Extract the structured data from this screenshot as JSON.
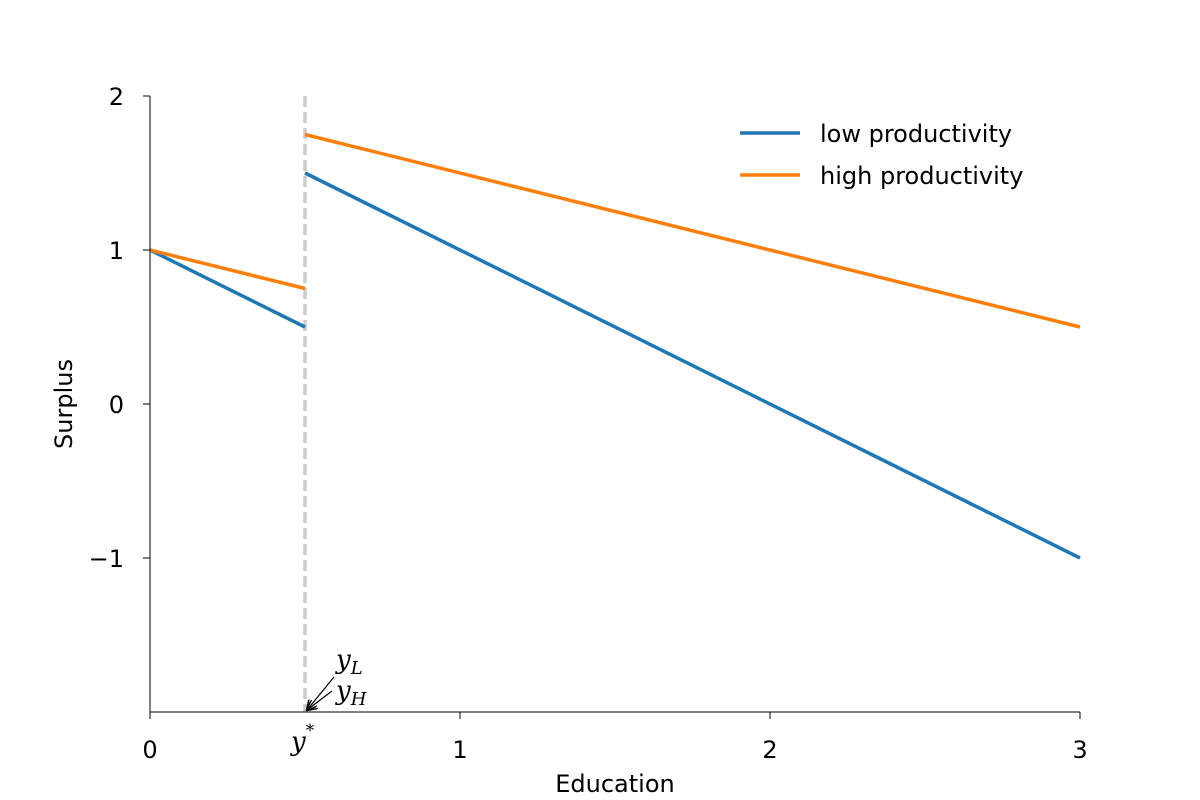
{
  "chart_data": {
    "type": "line",
    "title": "",
    "xlabel": "Education",
    "ylabel": "Surplus",
    "xlim": [
      0,
      3
    ],
    "ylim": [
      -2,
      2
    ],
    "xticks": [
      {
        "value": 0,
        "label": "0"
      },
      {
        "value": 1,
        "label": "1"
      },
      {
        "value": 2,
        "label": "2"
      },
      {
        "value": 3,
        "label": "3"
      }
    ],
    "yticks": [
      {
        "value": -1,
        "label": "−1"
      },
      {
        "value": 0,
        "label": "0"
      },
      {
        "value": 1,
        "label": "1"
      },
      {
        "value": 2,
        "label": "2"
      }
    ],
    "grid": false,
    "legend": "top-right",
    "threshold": {
      "x": 0.5,
      "color": "#cccccc",
      "style": "dashed",
      "label": "y",
      "label_sup": "*"
    },
    "annotations": [
      {
        "base": "y",
        "sub": "L",
        "arrow_to": [
          0.5,
          -2
        ]
      },
      {
        "base": "y",
        "sub": "H",
        "arrow_to": [
          0.5,
          -2
        ]
      }
    ],
    "series": [
      {
        "name": "low productivity",
        "color": "#1f77b4",
        "segments": [
          [
            [
              0,
              1
            ],
            [
              0.5,
              0.5
            ]
          ],
          [
            [
              0.5,
              1.5
            ],
            [
              3,
              -1
            ]
          ]
        ]
      },
      {
        "name": "high productivity",
        "color": "#ff7f0e",
        "segments": [
          [
            [
              0,
              1
            ],
            [
              0.5,
              0.75
            ]
          ],
          [
            [
              0.5,
              1.75
            ],
            [
              3,
              0.5
            ]
          ]
        ]
      }
    ]
  }
}
